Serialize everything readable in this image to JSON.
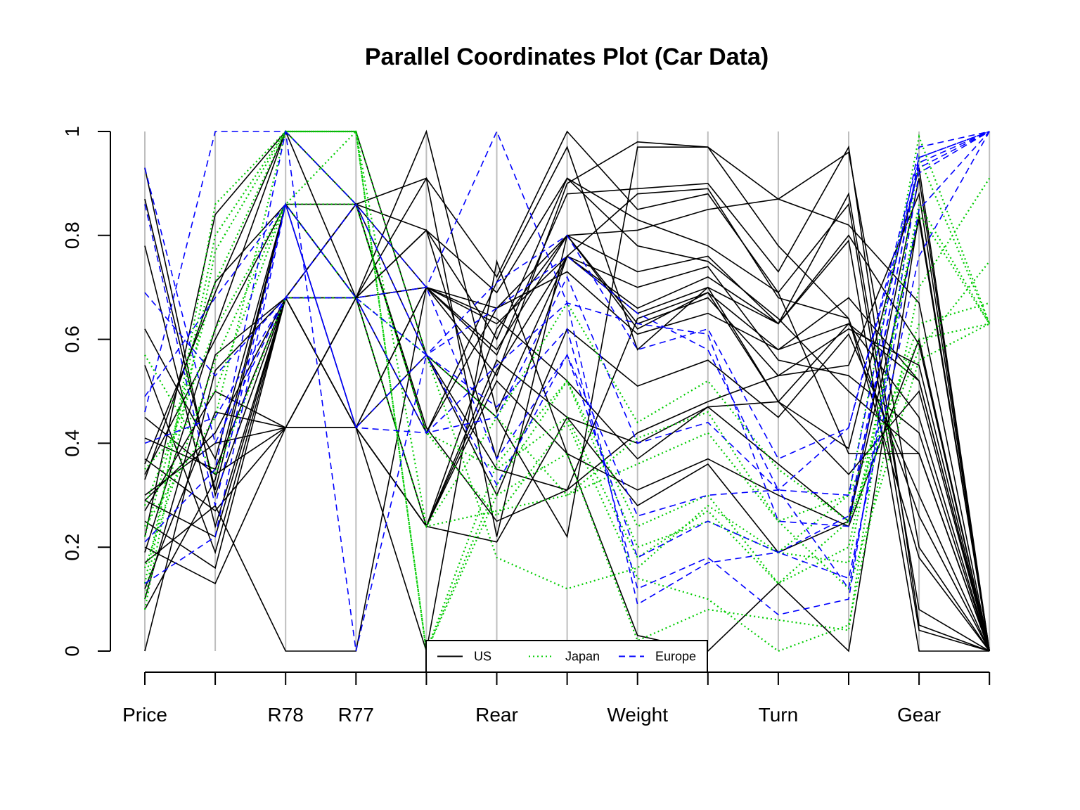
{
  "chart_data": {
    "type": "line",
    "title": "Parallel Coordinates Plot (Car Data)",
    "ylim": [
      0,
      1
    ],
    "y_ticks": [
      "0",
      "0.2",
      "0.4",
      "0.6",
      "0.8",
      "1"
    ],
    "x_tick_labels": [
      "Price",
      "",
      "R78",
      "R77",
      "",
      "Rear",
      "",
      "Weight",
      "",
      "Turn",
      "",
      "Gear",
      ""
    ],
    "grid": "vertical axis lines at each variable",
    "legend": {
      "placement": "bottom-center",
      "entries": [
        {
          "label": "US",
          "color": "#000000",
          "style": "solid"
        },
        {
          "label": "Japan",
          "color": "#00cc00",
          "style": "dotted"
        },
        {
          "label": "Europe",
          "color": "#0000ff",
          "style": "dashed"
        }
      ]
    },
    "series": [
      {
        "group": "US",
        "values": [
          0.93,
          0.3,
          0.68,
          0.68,
          0.81,
          0.6,
          0.91,
          0.78,
          0.75,
          0.64,
          0.5,
          0.38,
          0.0
        ]
      },
      {
        "group": "US",
        "values": [
          0.29,
          0.22,
          0.68,
          0.86,
          0.7,
          0.66,
          0.8,
          0.62,
          0.69,
          0.58,
          0.63,
          0.52,
          0.0
        ]
      },
      {
        "group": "US",
        "values": [
          0.2,
          0.13,
          0.43,
          0.43,
          0.24,
          0.54,
          0.76,
          0.65,
          0.7,
          0.48,
          0.39,
          0.93,
          0.0
        ]
      },
      {
        "group": "US",
        "values": [
          0.36,
          0.69,
          1.0,
          1.0,
          0.57,
          0.45,
          0.22,
          0.97,
          0.97,
          0.87,
          0.96,
          0.2,
          0.0
        ]
      },
      {
        "group": "US",
        "values": [
          0.62,
          0.37,
          0.86,
          0.68,
          0.42,
          0.71,
          0.97,
          0.58,
          0.7,
          0.63,
          0.8,
          0.59,
          0.0
        ]
      },
      {
        "group": "US",
        "values": [
          0.17,
          0.28,
          0.0,
          0.0,
          0.7,
          0.64,
          0.52,
          0.37,
          0.47,
          0.48,
          0.63,
          0.45,
          0.0
        ]
      },
      {
        "group": "US",
        "values": [
          0.41,
          0.35,
          0.68,
          0.43,
          0.7,
          0.57,
          0.88,
          0.89,
          0.9,
          0.73,
          0.97,
          0.05,
          0.0
        ]
      },
      {
        "group": "US",
        "values": [
          0.08,
          0.33,
          0.86,
          0.86,
          0.91,
          0.22,
          0.8,
          0.81,
          0.85,
          0.87,
          0.82,
          0.67,
          0.0
        ]
      },
      {
        "group": "US",
        "values": [
          0.27,
          0.5,
          0.43,
          0.68,
          0.24,
          0.56,
          0.45,
          0.4,
          0.47,
          0.36,
          0.25,
          0.83,
          0.0
        ]
      },
      {
        "group": "US",
        "values": [
          0.55,
          0.19,
          0.68,
          0.68,
          0.81,
          0.37,
          0.76,
          0.88,
          0.89,
          0.68,
          0.64,
          0.18,
          0.0
        ]
      },
      {
        "group": "US",
        "values": [
          0.34,
          0.6,
          0.86,
          0.43,
          0.0,
          0.75,
          0.38,
          0.03,
          0.0,
          0.13,
          0.0,
          0.84,
          0.0
        ]
      },
      {
        "group": "US",
        "values": [
          0.22,
          0.84,
          1.0,
          0.86,
          0.43,
          0.25,
          0.31,
          0.42,
          0.48,
          0.53,
          0.55,
          0.88,
          0.0
        ]
      },
      {
        "group": "US",
        "values": [
          0.3,
          0.4,
          0.43,
          0.68,
          0.24,
          0.62,
          0.8,
          0.73,
          0.76,
          0.63,
          0.88,
          0.08,
          0.0
        ]
      },
      {
        "group": "US",
        "values": [
          0.0,
          0.54,
          0.68,
          0.86,
          0.57,
          0.3,
          0.62,
          0.51,
          0.56,
          0.45,
          0.61,
          0.3,
          0.0
        ]
      },
      {
        "group": "US",
        "values": [
          0.78,
          0.24,
          0.68,
          0.43,
          0.7,
          0.53,
          0.9,
          0.98,
          0.97,
          0.78,
          0.64,
          0.26,
          0.0
        ]
      },
      {
        "group": "US",
        "values": [
          0.33,
          0.71,
          0.86,
          0.68,
          1.0,
          0.46,
          0.76,
          0.66,
          0.72,
          0.63,
          0.79,
          0.0,
          0.0
        ]
      },
      {
        "group": "US",
        "values": [
          0.12,
          0.46,
          0.43,
          0.43,
          0.24,
          0.21,
          0.45,
          0.28,
          0.36,
          0.19,
          0.25,
          0.91,
          0.0
        ]
      },
      {
        "group": "US",
        "values": [
          0.25,
          0.16,
          0.68,
          0.86,
          0.81,
          0.69,
          0.91,
          0.83,
          0.78,
          0.69,
          0.38,
          0.38,
          0.0
        ]
      },
      {
        "group": "US",
        "values": [
          0.19,
          0.62,
          1.0,
          0.68,
          0.7,
          0.58,
          0.8,
          0.63,
          0.68,
          0.53,
          0.62,
          0.55,
          0.0
        ]
      },
      {
        "group": "US",
        "values": [
          0.37,
          0.27,
          0.43,
          0.43,
          0.57,
          0.35,
          0.31,
          0.64,
          0.69,
          0.48,
          0.34,
          0.5,
          0.0
        ]
      },
      {
        "group": "US",
        "values": [
          0.1,
          0.57,
          0.68,
          0.86,
          0.42,
          0.66,
          0.73,
          0.61,
          0.65,
          0.58,
          0.68,
          0.52,
          0.0
        ]
      },
      {
        "group": "US",
        "values": [
          0.87,
          0.31,
          0.86,
          0.68,
          0.91,
          0.72,
          1.0,
          0.85,
          0.88,
          0.69,
          0.86,
          0.04,
          0.0
        ]
      },
      {
        "group": "US",
        "values": [
          0.29,
          0.42,
          0.68,
          0.43,
          0.24,
          0.52,
          0.38,
          0.31,
          0.37,
          0.3,
          0.24,
          0.6,
          0.0
        ]
      },
      {
        "group": "US",
        "values": [
          0.45,
          0.34,
          0.43,
          0.68,
          0.7,
          0.63,
          0.76,
          0.7,
          0.74,
          0.56,
          0.53,
          0.42,
          0.0
        ]
      },
      {
        "group": "Japan",
        "values": [
          0.1,
          0.86,
          1.0,
          1.0,
          0.57,
          0.18,
          0.12,
          0.16,
          0.28,
          0.19,
          0.3,
          0.99,
          0.63
        ]
      },
      {
        "group": "Japan",
        "values": [
          0.16,
          0.56,
          0.86,
          1.0,
          0.0,
          0.32,
          0.52,
          0.24,
          0.3,
          0.13,
          0.2,
          0.84,
          0.63
        ]
      },
      {
        "group": "Japan",
        "values": [
          0.22,
          0.71,
          1.0,
          0.86,
          0.42,
          0.26,
          0.44,
          0.14,
          0.1,
          0.0,
          0.05,
          0.7,
          0.91
        ]
      },
      {
        "group": "Japan",
        "values": [
          0.57,
          0.34,
          0.68,
          0.68,
          0.24,
          0.45,
          0.3,
          0.41,
          0.46,
          0.25,
          0.12,
          0.56,
          0.63
        ]
      },
      {
        "group": "Japan",
        "values": [
          0.13,
          0.8,
          1.0,
          1.0,
          0.0,
          0.36,
          0.52,
          0.2,
          0.25,
          0.19,
          0.17,
          0.86,
          0.63
        ]
      },
      {
        "group": "Japan",
        "values": [
          0.28,
          0.62,
          0.86,
          0.68,
          0.57,
          0.45,
          0.67,
          0.44,
          0.52,
          0.35,
          0.25,
          0.58,
          0.75
        ]
      },
      {
        "group": "Japan",
        "values": [
          0.08,
          0.77,
          1.0,
          1.0,
          0.0,
          0.3,
          0.38,
          0.02,
          0.08,
          0.06,
          0.04,
          0.95,
          0.63
        ]
      },
      {
        "group": "Japan",
        "values": [
          0.35,
          0.5,
          0.86,
          0.86,
          0.42,
          0.35,
          0.45,
          0.18,
          0.27,
          0.13,
          0.25,
          0.63,
          0.67
        ]
      },
      {
        "group": "Japan",
        "values": [
          0.24,
          0.45,
          1.0,
          1.0,
          0.24,
          0.27,
          0.3,
          0.36,
          0.42,
          0.25,
          0.3,
          0.6,
          0.63
        ]
      },
      {
        "group": "Europe",
        "values": [
          0.69,
          0.53,
          0.68,
          0.68,
          0.42,
          0.45,
          0.72,
          0.4,
          0.44,
          0.31,
          0.43,
          0.95,
          1.0
        ]
      },
      {
        "group": "Europe",
        "values": [
          0.46,
          1.0,
          1.0,
          0.86,
          0.57,
          0.32,
          0.57,
          0.18,
          0.25,
          0.19,
          0.14,
          0.76,
          1.0
        ]
      },
      {
        "group": "Europe",
        "values": [
          0.86,
          0.28,
          0.86,
          0.43,
          0.57,
          0.71,
          0.8,
          0.58,
          0.62,
          0.37,
          0.43,
          0.93,
          1.0
        ]
      },
      {
        "group": "Europe",
        "values": [
          0.49,
          0.68,
          0.86,
          0.68,
          0.7,
          1.0,
          0.67,
          0.63,
          0.61,
          0.25,
          0.24,
          0.95,
          1.0
        ]
      },
      {
        "group": "Europe",
        "values": [
          0.21,
          0.35,
          1.0,
          0.0,
          0.57,
          0.47,
          0.62,
          0.12,
          0.18,
          0.07,
          0.1,
          0.92,
          1.0
        ]
      },
      {
        "group": "Europe",
        "values": [
          0.4,
          0.45,
          0.68,
          0.86,
          0.7,
          0.37,
          0.57,
          0.26,
          0.3,
          0.31,
          0.12,
          0.85,
          1.0
        ]
      },
      {
        "group": "Europe",
        "values": [
          0.13,
          0.22,
          0.86,
          0.43,
          0.42,
          0.55,
          0.67,
          0.09,
          0.17,
          0.19,
          0.26,
          0.94,
          1.0
        ]
      },
      {
        "group": "Europe",
        "values": [
          0.93,
          0.4,
          0.68,
          0.68,
          0.57,
          0.66,
          0.76,
          0.65,
          0.58,
          0.31,
          0.3,
          0.97,
          1.0
        ]
      }
    ]
  }
}
